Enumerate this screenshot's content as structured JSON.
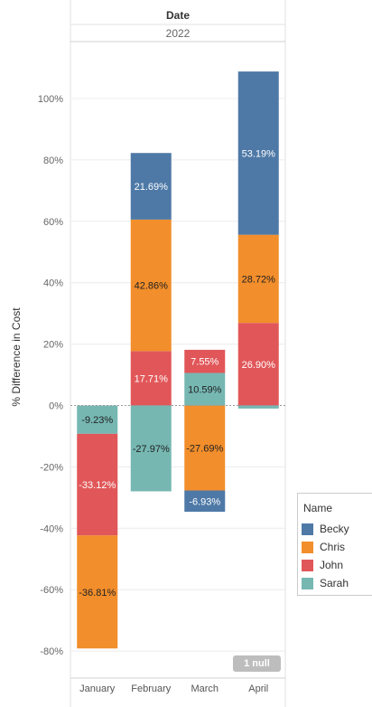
{
  "header": {
    "title": "Date",
    "year": "2022"
  },
  "y_axis_label": "% Difference in Cost",
  "null_badge": "1 null",
  "legend": {
    "title": "Name",
    "items": [
      {
        "label": "Becky",
        "color": "#4e79a7"
      },
      {
        "label": "Chris",
        "color": "#f28e2b"
      },
      {
        "label": "John",
        "color": "#e15759"
      },
      {
        "label": "Sarah",
        "color": "#76b7b2"
      }
    ]
  },
  "chart_data": {
    "type": "bar",
    "stacked": true,
    "categories": [
      "January",
      "February",
      "March",
      "April"
    ],
    "series": [
      {
        "name": "Becky",
        "color": "#4e79a7",
        "values": [
          null,
          21.69,
          -6.93,
          53.19
        ],
        "labels": [
          null,
          "21.69%",
          "-6.93%",
          "53.19%"
        ]
      },
      {
        "name": "Chris",
        "color": "#f28e2b",
        "values": [
          -36.81,
          42.86,
          -27.69,
          28.72
        ],
        "labels": [
          "-36.81%",
          "42.86%",
          "-27.69%",
          "28.72%"
        ]
      },
      {
        "name": "John",
        "color": "#e15759",
        "values": [
          -33.12,
          17.71,
          7.55,
          26.9
        ],
        "labels": [
          "-33.12%",
          "17.71%",
          "7.55%",
          "26.90%"
        ]
      },
      {
        "name": "Sarah",
        "color": "#76b7b2",
        "values": [
          -9.23,
          -27.97,
          10.59,
          -1.0
        ],
        "labels": [
          "-9.23%",
          "-27.97%",
          "10.59%",
          null
        ]
      }
    ],
    "ylabel": "% Difference in Cost",
    "ylim": [
      -85,
      112
    ],
    "yticks": [
      -80,
      -60,
      -40,
      -20,
      0,
      20,
      40,
      60,
      80,
      100
    ],
    "ytick_labels": [
      "-80%",
      "-60%",
      "-40%",
      "-20%",
      "0%",
      "20%",
      "40%",
      "60%",
      "80%",
      "100%"
    ],
    "grid": true,
    "legend_position": "right"
  }
}
